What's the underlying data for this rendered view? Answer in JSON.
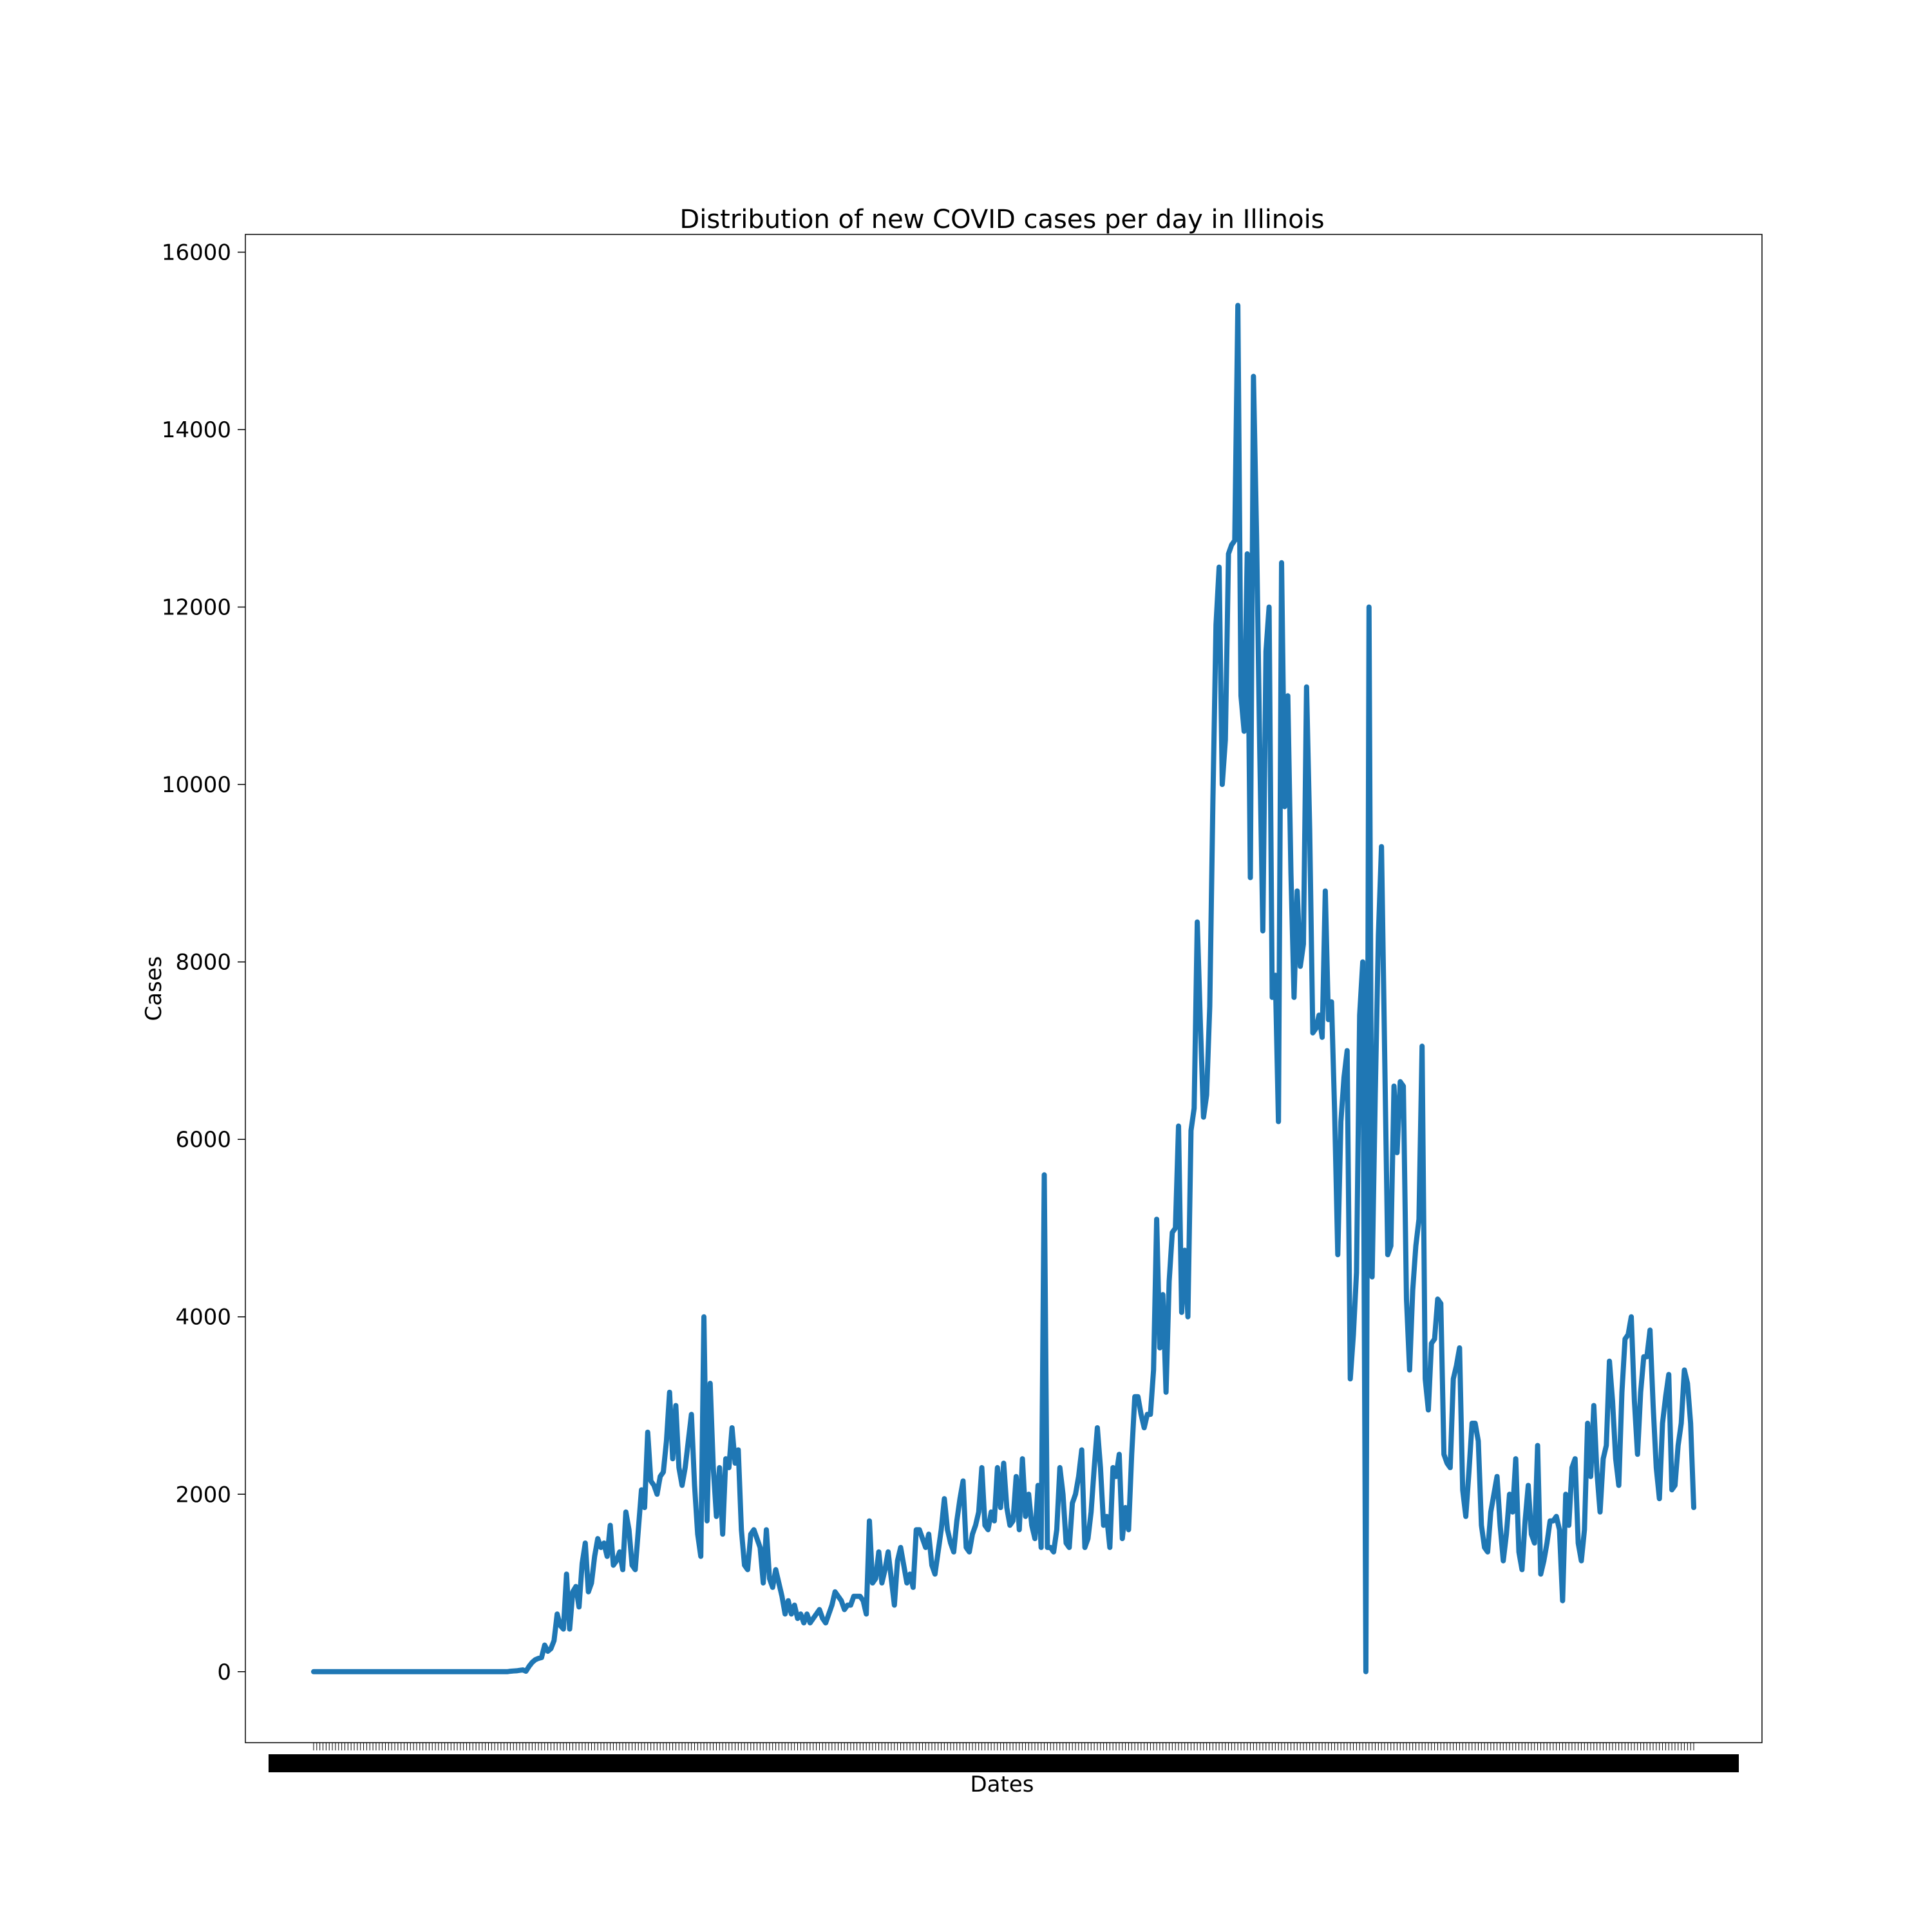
{
  "chart_data": {
    "type": "line",
    "title": "Distribution of new COVID cases per day in Illinois",
    "xlabel": "Dates",
    "ylabel": "Cases",
    "ylim": [
      -800,
      16200
    ],
    "y_ticks": [
      0,
      2000,
      4000,
      6000,
      8000,
      10000,
      12000,
      14000,
      16000
    ],
    "grid": false,
    "line_color": "#1f77b4",
    "x_tick_labels_note": "dense, overlapping, unreadable date labels (one per day)",
    "series": [
      {
        "values": [
          0,
          0,
          0,
          0,
          0,
          0,
          0,
          0,
          0,
          0,
          0,
          0,
          0,
          0,
          0,
          0,
          0,
          0,
          0,
          0,
          0,
          0,
          0,
          0,
          0,
          0,
          0,
          0,
          0,
          0,
          0,
          0,
          0,
          0,
          0,
          0,
          0,
          0,
          0,
          0,
          0,
          0,
          0,
          0,
          0,
          0,
          0,
          0,
          0,
          0,
          0,
          0,
          0,
          0,
          0,
          0,
          0,
          0,
          0,
          0,
          0,
          0,
          0,
          5,
          8,
          10,
          15,
          20,
          5,
          60,
          105,
          135,
          150,
          160,
          300,
          230,
          260,
          350,
          650,
          520,
          480,
          1100,
          480,
          900,
          960,
          730,
          1220,
          1450,
          900,
          1000,
          1300,
          1500,
          1400,
          1450,
          1300,
          1650,
          1200,
          1250,
          1350,
          1150,
          1800,
          1600,
          1200,
          1150,
          1600,
          2050,
          1850,
          2700,
          2150,
          2100,
          2000,
          2200,
          2250,
          2600,
          3150,
          2400,
          3000,
          2300,
          2100,
          2300,
          2600,
          2900,
          2100,
          1550,
          1300,
          4000,
          1700,
          3250,
          2300,
          1750,
          2300,
          1550,
          2400,
          2300,
          2750,
          2350,
          2500,
          1600,
          1200,
          1150,
          1550,
          1600,
          1500,
          1400,
          1000,
          1600,
          1050,
          950,
          1150,
          1000,
          850,
          650,
          800,
          650,
          750,
          600,
          650,
          550,
          650,
          550,
          600,
          650,
          700,
          600,
          550,
          650,
          750,
          900,
          850,
          800,
          700,
          750,
          750,
          850,
          850,
          850,
          800,
          650,
          1700,
          1000,
          1050,
          1350,
          1000,
          1150,
          1350,
          1050,
          750,
          1250,
          1400,
          1200,
          1000,
          1100,
          950,
          1600,
          1600,
          1500,
          1400,
          1550,
          1200,
          1100,
          1350,
          1600,
          1950,
          1600,
          1450,
          1350,
          1700,
          1950,
          2150,
          1400,
          1350,
          1550,
          1650,
          1800,
          2300,
          1650,
          1600,
          1800,
          1700,
          2300,
          1850,
          2350,
          1850,
          1650,
          1700,
          2200,
          1600,
          2400,
          1750,
          2000,
          1650,
          1500,
          2100,
          1400,
          5600,
          1400,
          1400,
          1350,
          1600,
          2300,
          2000,
          1450,
          1400,
          1900,
          2000,
          2200,
          2500,
          1400,
          1500,
          1800,
          2300,
          2750,
          2300,
          1650,
          1750,
          1400,
          2300,
          2200,
          2450,
          1500,
          1850,
          1600,
          2450,
          3100,
          3100,
          2900,
          2750,
          2900,
          2900,
          3400,
          5100,
          3650,
          4250,
          3150,
          4400,
          4950,
          5000,
          6150,
          4050,
          4750,
          4000,
          6100,
          6350,
          8450,
          7300,
          6250,
          6500,
          7500,
          9800,
          11800,
          12450,
          10000,
          10500,
          12600,
          12700,
          12750,
          15400,
          11000,
          10600,
          12600,
          8950,
          14600,
          12800,
          10400,
          8350,
          11500,
          12000,
          7600,
          7850,
          6200,
          12500,
          9750,
          11000,
          9000,
          7600,
          8800,
          7950,
          8200,
          11100,
          9500,
          7200,
          7250,
          7400,
          7150,
          8800,
          7350,
          7550,
          6300,
          4700,
          6200,
          6700,
          7000,
          3300,
          3800,
          4500,
          7400,
          8000,
          0,
          12000,
          4450,
          6500,
          8300,
          9300,
          7000,
          4700,
          4800,
          6600,
          5850,
          6650,
          6600,
          4200,
          3400,
          4300,
          4800,
          5100,
          7050,
          3300,
          2950,
          3700,
          3750,
          4200,
          4150,
          2450,
          2350,
          2300,
          3300,
          3450,
          3650,
          2050,
          1750,
          2250,
          2800,
          2800,
          2600,
          1650,
          1400,
          1350,
          1800,
          2000,
          2200,
          1650,
          1250,
          1550,
          2000,
          1800,
          2400,
          1350,
          1150,
          1700,
          2100,
          1550,
          1450,
          2550,
          1100,
          1250,
          1450,
          1700,
          1700,
          1750,
          1600,
          800,
          2000,
          1650,
          2300,
          2400,
          1450,
          1250,
          1600,
          2800,
          2200,
          3000,
          2250,
          1800,
          2400,
          2550,
          3500,
          3050,
          2400,
          2100,
          3150,
          3750,
          3800,
          4000,
          3050,
          2450,
          3150,
          3550,
          3550,
          3850,
          3000,
          2300,
          1950,
          2800,
          3100,
          3350,
          2050,
          2100,
          2550,
          2800,
          3400,
          3250,
          2800,
          1850
        ]
      }
    ]
  }
}
